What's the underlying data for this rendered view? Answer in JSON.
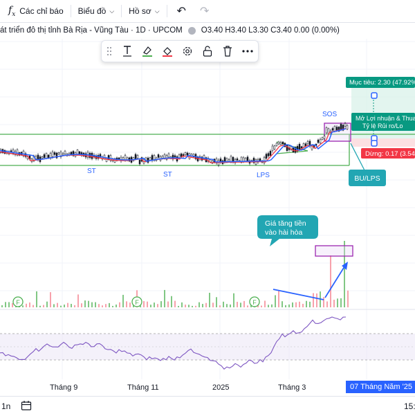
{
  "toolbar": {
    "indicators_label": "Các chỉ báo",
    "chart_label": "Biểu đồ",
    "profile_label": "Hồ sơ"
  },
  "legend": {
    "title": "át triển đô thị tỉnh Bà Rịa - Vũng Tàu · 1D · UPCOM",
    "ohlc": "O3.40 H3.40 L3.30 C3.40 0.00 (0.00%)"
  },
  "annotations": {
    "sos": "SOS",
    "st1": "ST",
    "st2": "ST",
    "lps": "LPS",
    "bu_lps": "BU/LPS",
    "volume_note_line1": "Giá tăng tiền",
    "volume_note_line2": "vào hài hòa",
    "target": "Mục tiêu: 2.30 (47.92%",
    "position_line1": "Mở Lợi nhuận & Thua",
    "position_line2": "Tỷ lệ Rủi ro/Lo",
    "stop": "Dừng: 0.17 (3.54"
  },
  "time_axis": {
    "labels": [
      "Tháng 9",
      "Tháng 11",
      "2025",
      "Tháng 3"
    ],
    "current_date": "07 Tháng Năm '25"
  },
  "bottom_bar": {
    "interval_left": "1n",
    "right_partial": "15:"
  },
  "colors": {
    "price_blue": "#2962ff",
    "ma_red": "#f23645",
    "support_green": "#4caf50",
    "candle": "#131722",
    "rsi_purple": "#7e57c2",
    "target_teal": "#089981",
    "stop_red": "#f23645",
    "annotation_teal": "#22a6b3",
    "volume_pink": "#f7a1ab",
    "volume_green": "#81c784"
  }
}
